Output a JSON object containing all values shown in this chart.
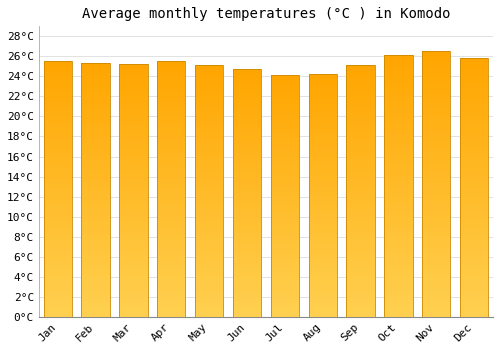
{
  "title": "Average monthly temperatures (°C ) in Komodo",
  "months": [
    "Jan",
    "Feb",
    "Mar",
    "Apr",
    "May",
    "Jun",
    "Jul",
    "Aug",
    "Sep",
    "Oct",
    "Nov",
    "Dec"
  ],
  "temperatures": [
    25.5,
    25.3,
    25.2,
    25.5,
    25.1,
    24.7,
    24.1,
    24.2,
    25.1,
    26.1,
    26.5,
    25.8
  ],
  "bar_color_bottom": "#FFD050",
  "bar_color_top": "#FFA500",
  "bar_edge_color": "#CC8800",
  "background_color": "#FFFFFF",
  "plot_bg_color": "#FFFFFF",
  "grid_color": "#DDDDDD",
  "ytick_labels": [
    "0°C",
    "2°C",
    "4°C",
    "6°C",
    "8°C",
    "10°C",
    "12°C",
    "14°C",
    "16°C",
    "18°C",
    "20°C",
    "22°C",
    "24°C",
    "26°C",
    "28°C"
  ],
  "ytick_values": [
    0,
    2,
    4,
    6,
    8,
    10,
    12,
    14,
    16,
    18,
    20,
    22,
    24,
    26,
    28
  ],
  "ylim": [
    0,
    29
  ],
  "title_fontsize": 10,
  "tick_fontsize": 8,
  "font_family": "monospace",
  "bar_width": 0.75,
  "n_gradient_steps": 50
}
